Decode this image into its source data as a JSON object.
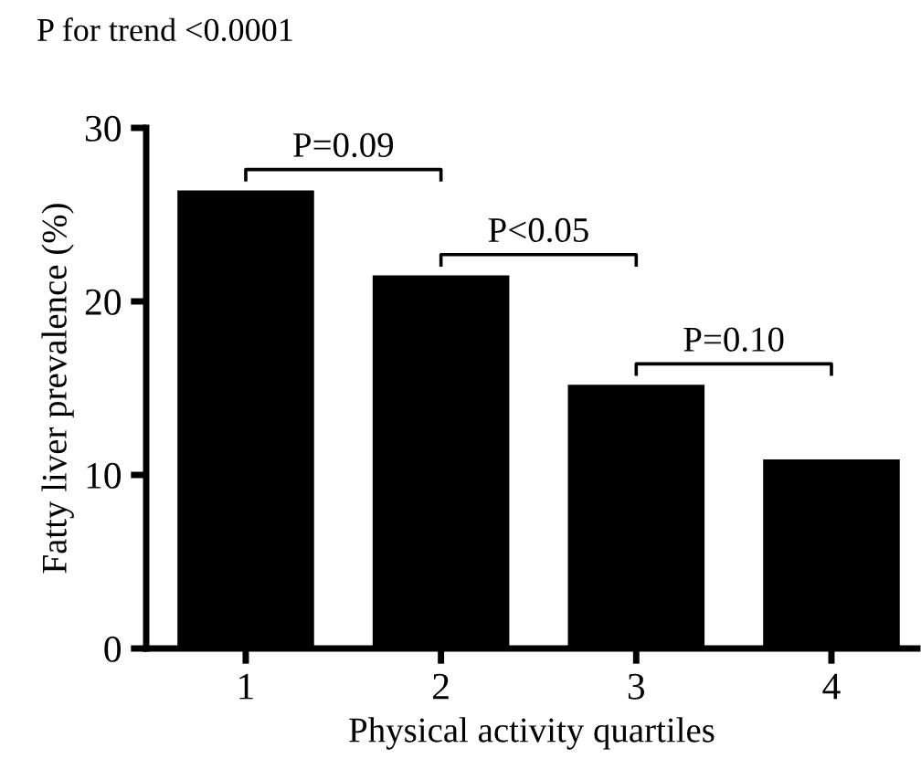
{
  "chart_data": {
    "type": "bar",
    "categories": [
      "1",
      "2",
      "3",
      "4"
    ],
    "values": [
      26.4,
      21.5,
      15.2,
      10.9
    ],
    "color": "#000000",
    "xlabel": "Physical activity quartiles",
    "ylabel": "Fatty liver prevalence (%)",
    "ylim": [
      0,
      30
    ],
    "yticks": [
      0,
      10,
      20,
      30
    ],
    "grid": false,
    "legend": false,
    "annotations": [
      "P for trend <0.0001",
      "P=0.09",
      "P<0.05",
      "P=0.10"
    ]
  }
}
